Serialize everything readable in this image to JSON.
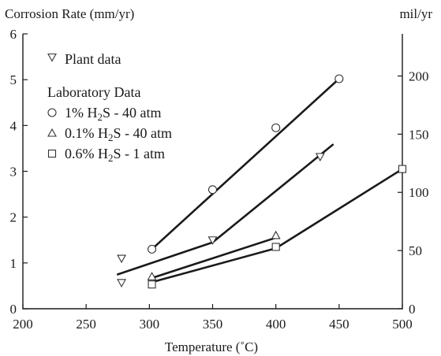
{
  "chart_data": {
    "type": "scatter",
    "title": "",
    "ylabel": "Corrosion Rate (mm/yr)",
    "y2label": "mil/yr",
    "xlabel": "Temperature (˚C)",
    "xlim": [
      200,
      500
    ],
    "ylim": [
      0,
      6
    ],
    "y2lim": [
      0,
      236.2
    ],
    "xticks": [
      200,
      250,
      300,
      350,
      400,
      450,
      500
    ],
    "yticks": [
      0,
      1,
      2,
      3,
      4,
      5,
      6
    ],
    "y2ticks": [
      0,
      50,
      100,
      150,
      200
    ],
    "grid": false,
    "legend": {
      "position": "top-left",
      "plant_label": "Plant data",
      "lab_heading": "Laboratory Data",
      "entries": [
        {
          "pre": "1% H",
          "sub": "2",
          "post": "S - 40 atm"
        },
        {
          "pre": "0.1% H",
          "sub": "2",
          "post": "S - 40 atm"
        },
        {
          "pre": "0.6% H",
          "sub": "2",
          "post": "S - 1 atm"
        }
      ]
    },
    "series": [
      {
        "marker": "inverted-triangle",
        "points": [
          [
            278,
            1.1
          ],
          [
            278,
            0.57
          ],
          [
            350,
            1.5
          ],
          [
            435,
            3.32
          ]
        ]
      },
      {
        "marker": "circle",
        "points": [
          [
            302,
            1.3
          ],
          [
            350,
            2.6
          ],
          [
            400,
            3.95
          ],
          [
            450,
            5.02
          ]
        ]
      },
      {
        "marker": "triangle",
        "points": [
          [
            302,
            0.7
          ],
          [
            400,
            1.6
          ]
        ]
      },
      {
        "marker": "square",
        "points": [
          [
            302,
            0.53
          ],
          [
            400,
            1.35
          ],
          [
            500,
            3.05
          ]
        ]
      }
    ],
    "fit_lines": [
      {
        "marker": "circle",
        "points": [
          [
            302,
            1.3
          ],
          [
            450,
            5.02
          ]
        ]
      },
      {
        "marker": "inverted-triangle",
        "points": [
          [
            275,
            0.75
          ],
          [
            350,
            1.45
          ],
          [
            445,
            3.58
          ]
        ]
      },
      {
        "marker": "triangle",
        "points": [
          [
            302,
            0.67
          ],
          [
            400,
            1.55
          ]
        ]
      },
      {
        "marker": "square",
        "points": [
          [
            302,
            0.58
          ],
          [
            400,
            1.32
          ],
          [
            500,
            3.05
          ]
        ]
      }
    ]
  }
}
